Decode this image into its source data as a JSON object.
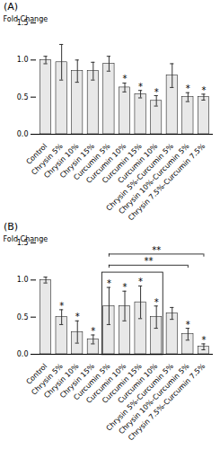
{
  "chart_data": [
    {
      "type": "bar",
      "title": "(A)",
      "ylabel": "Fold Change",
      "categories": [
        "Control",
        "Chrysin 5%",
        "Chrysin 10%",
        "Chrysin 15%",
        "Curcumin 5%",
        "Curcumin 10%",
        "Curcumin 15%",
        "Curcumin 10%",
        "Chrysin 5%-Curcumin 5%",
        "Chrysin 10%-Curcumin 5%",
        "Chrysin 7.5%-Curcumin 7.5%"
      ],
      "values": [
        1.0,
        0.97,
        0.85,
        0.85,
        0.95,
        0.63,
        0.54,
        0.45,
        0.79,
        0.5,
        0.5
      ],
      "errors": [
        0.05,
        0.24,
        0.15,
        0.12,
        0.1,
        0.06,
        0.05,
        0.07,
        0.16,
        0.06,
        0.04
      ],
      "significance": [
        null,
        null,
        null,
        null,
        null,
        "*",
        "*",
        "*",
        null,
        "*",
        "*"
      ],
      "color": "#e8e8e8",
      "ylim": [
        0.0,
        1.5
      ],
      "yticks": [
        {
          "value": 0.0,
          "label": "0.0"
        },
        0.5,
        {
          "value": 1.0,
          "label": "1.0"
        },
        1.5
      ],
      "grid": false
    },
    {
      "type": "bar",
      "title": "(B)",
      "ylabel": "Fold Change",
      "categories": [
        "Control",
        "Chrysin 5%",
        "Chrysin 10%",
        "Chrysin 15%",
        "Curcumin 5%",
        "Curcumin 10%",
        "Curcumin 15%",
        "Curcumin 10%",
        "Chrysin 5%-Curcumin 5%",
        "Chrysin 10%-Curcumin 5%",
        "Chrysin 7.5%-Curcumin 7.5%"
      ],
      "values": [
        1.0,
        0.5,
        0.3,
        0.2,
        0.65,
        0.65,
        0.7,
        0.5,
        0.55,
        0.27,
        0.1
      ],
      "errors": [
        0.04,
        0.1,
        0.15,
        0.06,
        0.25,
        0.2,
        0.22,
        0.15,
        0.08,
        0.08,
        0.04
      ],
      "significance": [
        null,
        "*",
        "*",
        "*",
        "*",
        "*",
        "*",
        "*",
        null,
        "*",
        "*"
      ],
      "color": "#e8e8e8",
      "ylim": [
        0.0,
        1.5
      ],
      "yticks": [
        {
          "value": 0.0,
          "label": "0.0"
        },
        0.5,
        {
          "value": 1.0,
          "label": "1.0"
        },
        1.5
      ],
      "grid": false,
      "annotations": [
        {
          "text": "**",
          "from": 4,
          "to": 9,
          "y": 1.2
        },
        {
          "text": "**",
          "from": 4,
          "to": 10,
          "y": 1.35
        }
      ],
      "box": {
        "from": 4,
        "to": 7,
        "y": [
          -0.01,
          1.1
        ]
      }
    }
  ]
}
